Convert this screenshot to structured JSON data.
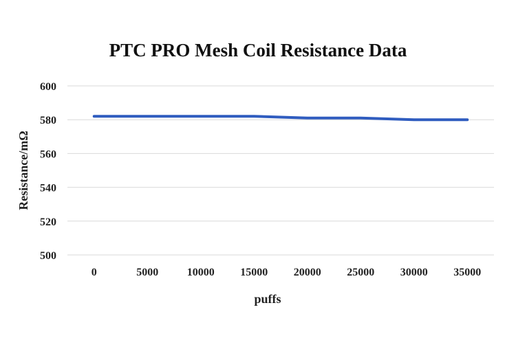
{
  "chart_data": {
    "type": "line",
    "title": "PTC PRO Mesh Coil Resistance Data",
    "xlabel": "puffs",
    "ylabel": "Resistance/mΩ",
    "categories": [
      "0",
      "5000",
      "10000",
      "15000",
      "20000",
      "25000",
      "30000",
      "35000"
    ],
    "series": [
      {
        "values": [
          582,
          582,
          582,
          582,
          581,
          581,
          580,
          580
        ]
      }
    ],
    "ylim": [
      500,
      600
    ],
    "yticks": [
      "500",
      "520",
      "540",
      "560",
      "580",
      "600"
    ],
    "grid": true,
    "colors": {
      "line": "#2f5cbf",
      "grid": "#d9d9d9"
    }
  }
}
